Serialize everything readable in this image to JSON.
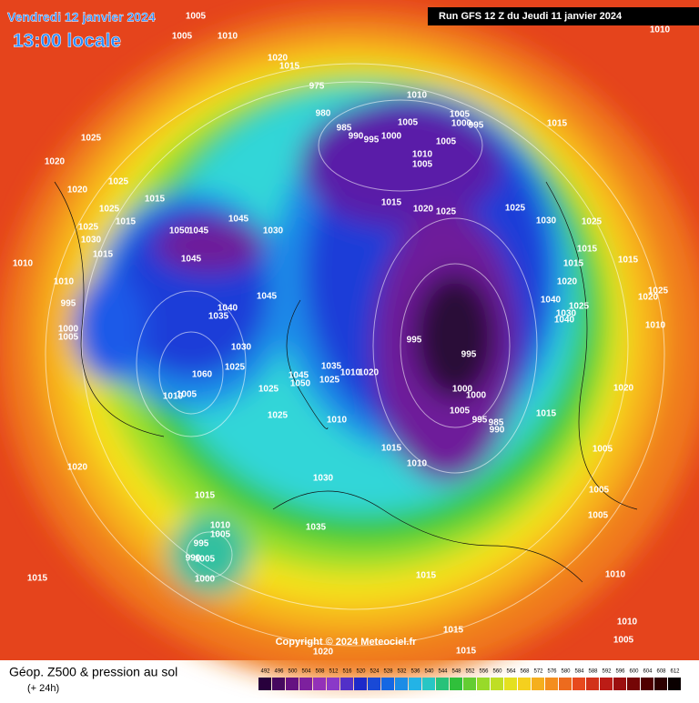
{
  "header": {
    "date": "Vendredi 12 janvier 2024",
    "time": "13:00 locale",
    "run": "Run GFS 12 Z du Jeudi 11 janvier 2024"
  },
  "copyright": "Copyright © 2024 Meteociel.fr",
  "footer": {
    "title": "Géop. Z500 & pression au sol",
    "lead": "(+ 24h)"
  },
  "scale": [
    492,
    496,
    500,
    504,
    508,
    512,
    516,
    520,
    524,
    528,
    532,
    536,
    540,
    544,
    548,
    552,
    556,
    560,
    564,
    568,
    572,
    576,
    580,
    584,
    588,
    592,
    596,
    600,
    604,
    608,
    612
  ],
  "isobar_labels": [
    1005,
    1010,
    1005,
    1010,
    1020,
    1015,
    975,
    1010,
    980,
    985,
    990,
    995,
    1000,
    1005,
    1005,
    1000,
    995,
    1005,
    1015,
    1025,
    1020,
    1010,
    1005,
    1025,
    1020,
    1015,
    1025,
    1015,
    1020,
    1025,
    1025,
    1030,
    1025,
    1045,
    1030,
    1015,
    1025,
    1030,
    1050,
    1045,
    1015,
    1015,
    1045,
    1010,
    1015,
    1015,
    1020,
    1010,
    1045,
    1040,
    995,
    1025,
    1020,
    1025,
    1040,
    1030,
    1035,
    1040,
    1010,
    1000,
    1005,
    995,
    995,
    1030,
    1025,
    1035,
    1020,
    1010,
    1060,
    1045,
    1050,
    1025,
    1010,
    1005,
    1025,
    1000,
    1000,
    1020,
    1005,
    995,
    985,
    990,
    1015,
    1025,
    1010,
    1015,
    1005,
    1010,
    1020,
    1030,
    1015,
    1005,
    1005,
    1010,
    1035,
    1005,
    995,
    990,
    1005,
    1000,
    1015,
    1015,
    1010,
    1010,
    1015,
    1005,
    1015,
    1020
  ]
}
